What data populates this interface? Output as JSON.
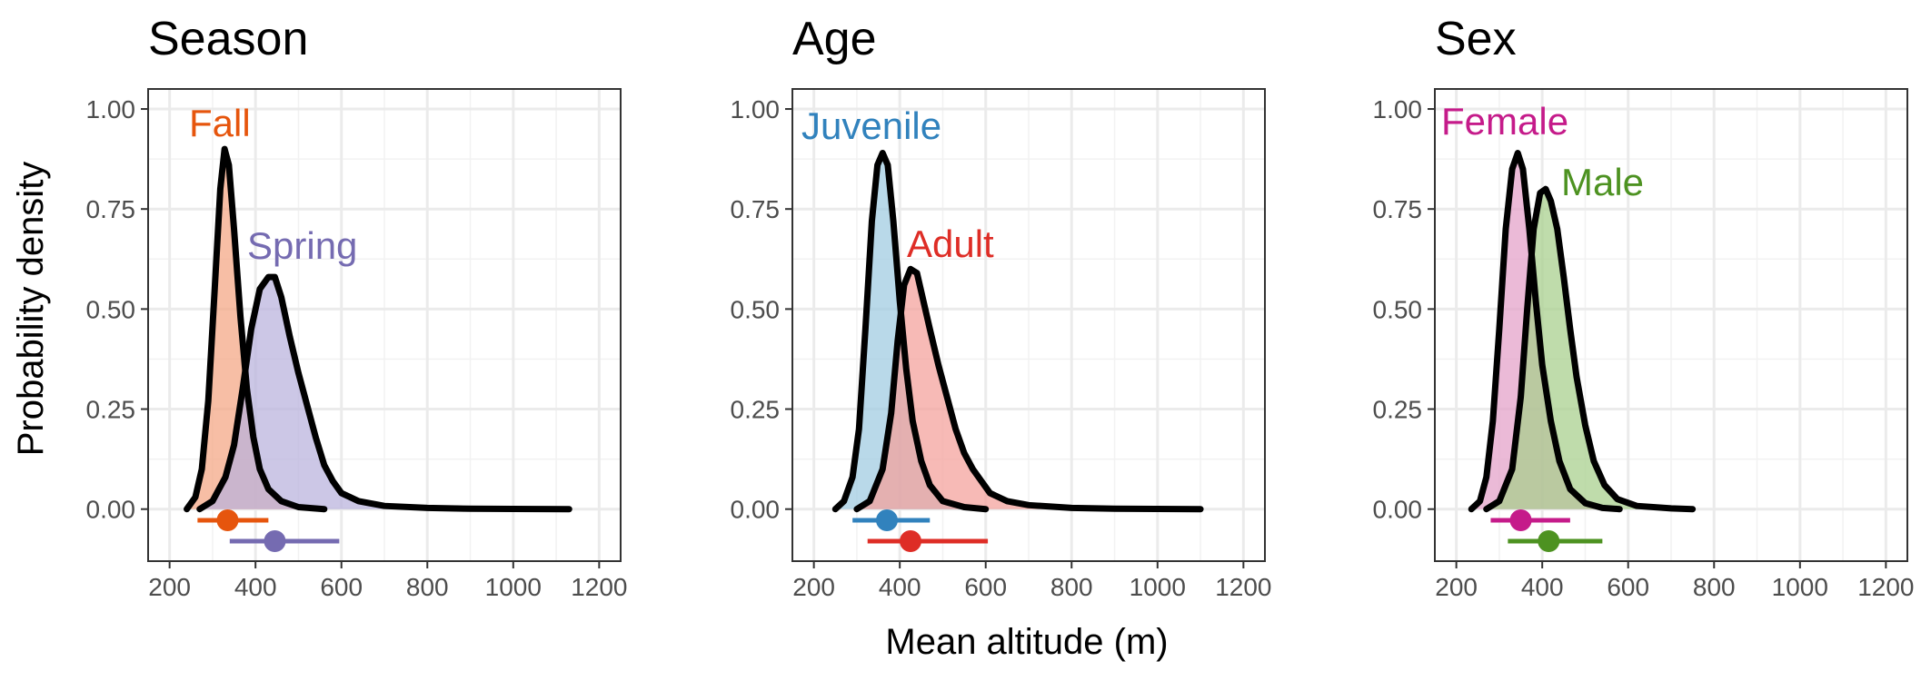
{
  "y_axis_label": "Probability density",
  "x_axis_label": "Mean altitude (m)",
  "chart_data": [
    {
      "type": "area",
      "title": "Season",
      "xlim": [
        150,
        1250
      ],
      "ylim": [
        -0.13,
        1.05
      ],
      "x_ticks": [
        200,
        400,
        600,
        800,
        1000,
        1200
      ],
      "x_tick_labels": [
        "200",
        "400",
        "600",
        "800",
        "1000",
        "1200"
      ],
      "y_ticks": [
        0,
        0.25,
        0.5,
        0.75,
        1.0
      ],
      "y_tick_labels": [
        "0.00",
        "0.25",
        "0.50",
        "0.75",
        "1.00"
      ],
      "grid": true,
      "series": [
        {
          "name": "Fall",
          "color": "#e6550d",
          "fill": "#f4a582",
          "curve": [
            [
              240,
              0
            ],
            [
              260,
              0.03
            ],
            [
              275,
              0.1
            ],
            [
              290,
              0.27
            ],
            [
              305,
              0.55
            ],
            [
              318,
              0.8
            ],
            [
              328,
              0.9
            ],
            [
              338,
              0.86
            ],
            [
              350,
              0.7
            ],
            [
              365,
              0.48
            ],
            [
              380,
              0.3
            ],
            [
              395,
              0.18
            ],
            [
              410,
              0.1
            ],
            [
              430,
              0.05
            ],
            [
              460,
              0.02
            ],
            [
              500,
              0.005
            ],
            [
              560,
              0
            ]
          ],
          "point": 335,
          "interval": [
            265,
            430
          ]
        },
        {
          "name": "Spring",
          "color": "#756bb1",
          "fill": "#b9b2dc",
          "curve": [
            [
              270,
              0
            ],
            [
              300,
              0.02
            ],
            [
              330,
              0.08
            ],
            [
              350,
              0.16
            ],
            [
              370,
              0.3
            ],
            [
              390,
              0.45
            ],
            [
              410,
              0.55
            ],
            [
              430,
              0.58
            ],
            [
              445,
              0.58
            ],
            [
              460,
              0.53
            ],
            [
              480,
              0.43
            ],
            [
              500,
              0.34
            ],
            [
              520,
              0.26
            ],
            [
              540,
              0.18
            ],
            [
              560,
              0.11
            ],
            [
              580,
              0.07
            ],
            [
              600,
              0.04
            ],
            [
              640,
              0.02
            ],
            [
              700,
              0.008
            ],
            [
              800,
              0.003
            ],
            [
              900,
              0.001
            ],
            [
              1000,
              0.0005
            ],
            [
              1130,
              0
            ]
          ],
          "point": 445,
          "interval": [
            340,
            595
          ]
        }
      ]
    },
    {
      "type": "area",
      "title": "Age",
      "xlim": [
        150,
        1250
      ],
      "ylim": [
        -0.13,
        1.05
      ],
      "x_ticks": [
        200,
        400,
        600,
        800,
        1000,
        1200
      ],
      "x_tick_labels": [
        "200",
        "400",
        "600",
        "800",
        "1000",
        "1200"
      ],
      "y_ticks": [
        0,
        0.25,
        0.5,
        0.75,
        1.0
      ],
      "y_tick_labels": [
        "0.00",
        "0.25",
        "0.50",
        "0.75",
        "1.00"
      ],
      "grid": true,
      "series": [
        {
          "name": "Juvenile",
          "color": "#3182bd",
          "fill": "#9ecae1",
          "curve": [
            [
              250,
              0
            ],
            [
              270,
              0.02
            ],
            [
              290,
              0.08
            ],
            [
              305,
              0.2
            ],
            [
              320,
              0.45
            ],
            [
              335,
              0.72
            ],
            [
              348,
              0.86
            ],
            [
              360,
              0.89
            ],
            [
              372,
              0.86
            ],
            [
              385,
              0.72
            ],
            [
              400,
              0.52
            ],
            [
              415,
              0.35
            ],
            [
              430,
              0.22
            ],
            [
              450,
              0.12
            ],
            [
              470,
              0.06
            ],
            [
              500,
              0.02
            ],
            [
              550,
              0.005
            ],
            [
              600,
              0
            ]
          ],
          "point": 370,
          "interval": [
            290,
            470
          ]
        },
        {
          "name": "Adult",
          "color": "#de2d26",
          "fill": "#f4a09a",
          "curve": [
            [
              300,
              0
            ],
            [
              330,
              0.02
            ],
            [
              360,
              0.1
            ],
            [
              380,
              0.24
            ],
            [
              395,
              0.42
            ],
            [
              410,
              0.56
            ],
            [
              425,
              0.6
            ],
            [
              440,
              0.59
            ],
            [
              455,
              0.52
            ],
            [
              470,
              0.45
            ],
            [
              490,
              0.36
            ],
            [
              510,
              0.28
            ],
            [
              530,
              0.2
            ],
            [
              550,
              0.14
            ],
            [
              570,
              0.1
            ],
            [
              590,
              0.07
            ],
            [
              610,
              0.04
            ],
            [
              630,
              0.03
            ],
            [
              650,
              0.02
            ],
            [
              700,
              0.01
            ],
            [
              800,
              0.003
            ],
            [
              900,
              0.001
            ],
            [
              1000,
              0.0005
            ],
            [
              1100,
              0
            ]
          ],
          "point": 425,
          "interval": [
            325,
            605
          ]
        }
      ]
    },
    {
      "type": "area",
      "title": "Sex",
      "xlim": [
        150,
        1250
      ],
      "ylim": [
        -0.13,
        1.05
      ],
      "x_ticks": [
        200,
        400,
        600,
        800,
        1000,
        1200
      ],
      "x_tick_labels": [
        "200",
        "400",
        "600",
        "800",
        "1000",
        "1200"
      ],
      "y_ticks": [
        0,
        0.25,
        0.5,
        0.75,
        1.0
      ],
      "y_tick_labels": [
        "0.00",
        "0.25",
        "0.50",
        "0.75",
        "1.00"
      ],
      "grid": true,
      "series": [
        {
          "name": "Female",
          "color": "#c51b8a",
          "fill": "#e3a0c8",
          "curve": [
            [
              235,
              0
            ],
            [
              255,
              0.02
            ],
            [
              270,
              0.08
            ],
            [
              285,
              0.22
            ],
            [
              300,
              0.45
            ],
            [
              315,
              0.7
            ],
            [
              330,
              0.85
            ],
            [
              343,
              0.89
            ],
            [
              355,
              0.85
            ],
            [
              370,
              0.7
            ],
            [
              385,
              0.52
            ],
            [
              400,
              0.36
            ],
            [
              420,
              0.22
            ],
            [
              440,
              0.12
            ],
            [
              465,
              0.05
            ],
            [
              500,
              0.015
            ],
            [
              540,
              0.003
            ],
            [
              580,
              0
            ]
          ],
          "point": 350,
          "interval": [
            280,
            465
          ]
        },
        {
          "name": "Male",
          "color": "#4d9221",
          "fill": "#a6cf8a",
          "curve": [
            [
              270,
              0
            ],
            [
              300,
              0.02
            ],
            [
              330,
              0.1
            ],
            [
              350,
              0.28
            ],
            [
              365,
              0.5
            ],
            [
              380,
              0.7
            ],
            [
              395,
              0.79
            ],
            [
              408,
              0.8
            ],
            [
              420,
              0.77
            ],
            [
              435,
              0.7
            ],
            [
              450,
              0.58
            ],
            [
              465,
              0.45
            ],
            [
              480,
              0.33
            ],
            [
              500,
              0.21
            ],
            [
              520,
              0.12
            ],
            [
              545,
              0.06
            ],
            [
              575,
              0.025
            ],
            [
              620,
              0.008
            ],
            [
              700,
              0.002
            ],
            [
              750,
              0
            ]
          ],
          "point": 415,
          "interval": [
            320,
            540
          ]
        }
      ]
    }
  ]
}
